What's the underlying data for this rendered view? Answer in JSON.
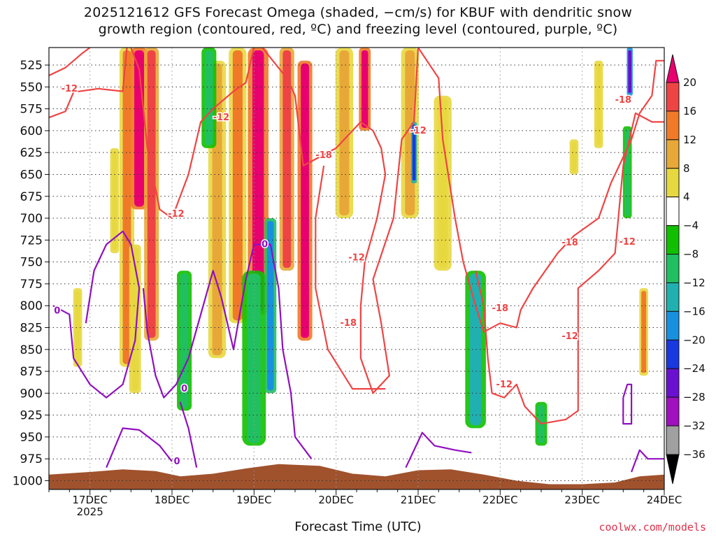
{
  "title": {
    "line1": "2025121612 GFS Forecast Omega (shaded, −cm/s) for KBUF with dendritic snow",
    "line2": "growth region (contoured, red, ºC) and freezing level (contoured, purple, ºC)"
  },
  "chart_data": {
    "type": "heatmap",
    "xlabel": "Forecast Time (UTC)",
    "x_ticks": [
      "17DEC",
      "18DEC",
      "19DEC",
      "20DEC",
      "21DEC",
      "22DEC",
      "23DEC",
      "24DEC"
    ],
    "x_tick_year": "2025",
    "x_range_days": [
      16.5,
      24.0
    ],
    "y_ticks": [
      525,
      550,
      575,
      600,
      625,
      650,
      675,
      700,
      725,
      750,
      775,
      800,
      825,
      850,
      875,
      900,
      925,
      950,
      975,
      1000
    ],
    "y_range_hpa": [
      505,
      1010
    ],
    "grid": true,
    "colorbar": {
      "labels": [
        "20",
        "16",
        "12",
        "8",
        "4",
        "−4",
        "−8",
        "−12",
        "−16",
        "−20",
        "−24",
        "−28",
        "−32",
        "−36"
      ],
      "colors": [
        "#e8006f",
        "#ef4444",
        "#f07a28",
        "#e8a838",
        "#e8d840",
        "#ffffff",
        "#10c000",
        "#20c060",
        "#20b0b0",
        "#1890e0",
        "#1838e0",
        "#6a10d0",
        "#a010c0",
        "#a0a0a0",
        "#000000"
      ]
    },
    "omega_columns": [
      {
        "day": 17.45,
        "width": 0.1,
        "top": 505,
        "bottom": 870,
        "value": 14
      },
      {
        "day": 17.6,
        "width": 0.12,
        "top": 505,
        "bottom": 690,
        "value": 22
      },
      {
        "day": 17.75,
        "width": 0.1,
        "top": 505,
        "bottom": 840,
        "value": 16
      },
      {
        "day": 18.55,
        "width": 0.12,
        "top": 520,
        "bottom": 860,
        "value": 10
      },
      {
        "day": 18.8,
        "width": 0.12,
        "top": 505,
        "bottom": 820,
        "value": 14
      },
      {
        "day": 19.05,
        "width": 0.14,
        "top": 505,
        "bottom": 810,
        "value": 22
      },
      {
        "day": 19.4,
        "width": 0.1,
        "top": 505,
        "bottom": 760,
        "value": 16
      },
      {
        "day": 19.62,
        "width": 0.1,
        "top": 520,
        "bottom": 840,
        "value": 22
      },
      {
        "day": 20.1,
        "width": 0.12,
        "top": 505,
        "bottom": 700,
        "value": 10
      },
      {
        "day": 20.35,
        "width": 0.08,
        "top": 505,
        "bottom": 600,
        "value": 22
      },
      {
        "day": 20.9,
        "width": 0.12,
        "top": 505,
        "bottom": 700,
        "value": 10
      },
      {
        "day": 21.3,
        "width": 0.12,
        "top": 560,
        "bottom": 760,
        "value": 6
      },
      {
        "day": 23.75,
        "width": 0.06,
        "top": 780,
        "bottom": 880,
        "value": 12
      },
      {
        "day": 17.55,
        "width": 0.08,
        "top": 730,
        "bottom": 900,
        "value": 6
      },
      {
        "day": 18.15,
        "width": 0.1,
        "top": 760,
        "bottom": 920,
        "value": -8
      },
      {
        "day": 19.0,
        "width": 0.16,
        "top": 760,
        "bottom": 960,
        "value": -10
      },
      {
        "day": 19.2,
        "width": 0.08,
        "top": 700,
        "bottom": 900,
        "value": -16
      },
      {
        "day": 20.95,
        "width": 0.04,
        "top": 590,
        "bottom": 660,
        "value": -20
      },
      {
        "day": 21.7,
        "width": 0.14,
        "top": 760,
        "bottom": 940,
        "value": -12
      },
      {
        "day": 22.5,
        "width": 0.08,
        "top": 910,
        "bottom": 960,
        "value": -8
      },
      {
        "day": 23.55,
        "width": 0.06,
        "top": 595,
        "bottom": 700,
        "value": -8
      },
      {
        "day": 23.58,
        "width": 0.04,
        "top": 505,
        "bottom": 560,
        "value": -24
      },
      {
        "day": 18.45,
        "width": 0.1,
        "top": 505,
        "bottom": 620,
        "value": -8
      },
      {
        "day": 16.85,
        "width": 0.06,
        "top": 780,
        "bottom": 870,
        "value": 6
      },
      {
        "day": 17.3,
        "width": 0.06,
        "top": 620,
        "bottom": 740,
        "value": 6
      },
      {
        "day": 22.9,
        "width": 0.06,
        "top": 610,
        "bottom": 650,
        "value": 6
      },
      {
        "day": 23.2,
        "width": 0.06,
        "top": 520,
        "bottom": 620,
        "value": 6
      }
    ],
    "terrain": {
      "color": "#a0522d",
      "label": ""
    },
    "snow_growth_contours": {
      "color": "#ef4444",
      "labels": [
        {
          "text": "-12",
          "day": 16.75,
          "hpa": 552
        },
        {
          "text": "-12",
          "day": 18.05,
          "hpa": 695
        },
        {
          "text": "-12",
          "day": 18.6,
          "hpa": 585
        },
        {
          "text": "-18",
          "day": 19.85,
          "hpa": 628
        },
        {
          "text": "-12",
          "day": 20.25,
          "hpa": 745
        },
        {
          "text": "-18",
          "day": 20.15,
          "hpa": 820
        },
        {
          "text": "-12",
          "day": 21.0,
          "hpa": 600
        },
        {
          "text": "-18",
          "day": 22.0,
          "hpa": 803
        },
        {
          "text": "-12",
          "day": 22.05,
          "hpa": 890
        },
        {
          "text": "-18",
          "day": 22.85,
          "hpa": 728
        },
        {
          "text": "-12",
          "day": 22.85,
          "hpa": 835
        },
        {
          "text": "-12",
          "day": 23.55,
          "hpa": 727
        },
        {
          "text": "-18",
          "day": 23.5,
          "hpa": 565
        }
      ]
    },
    "freezing_contours": {
      "color": "#9010c0",
      "labels": [
        {
          "text": "0",
          "day": 16.6,
          "hpa": 806
        },
        {
          "text": "0",
          "day": 18.15,
          "hpa": 895
        },
        {
          "text": "0",
          "day": 18.06,
          "hpa": 978
        },
        {
          "text": "0",
          "day": 19.13,
          "hpa": 730
        }
      ]
    }
  },
  "credit": "coolwx.com/models"
}
